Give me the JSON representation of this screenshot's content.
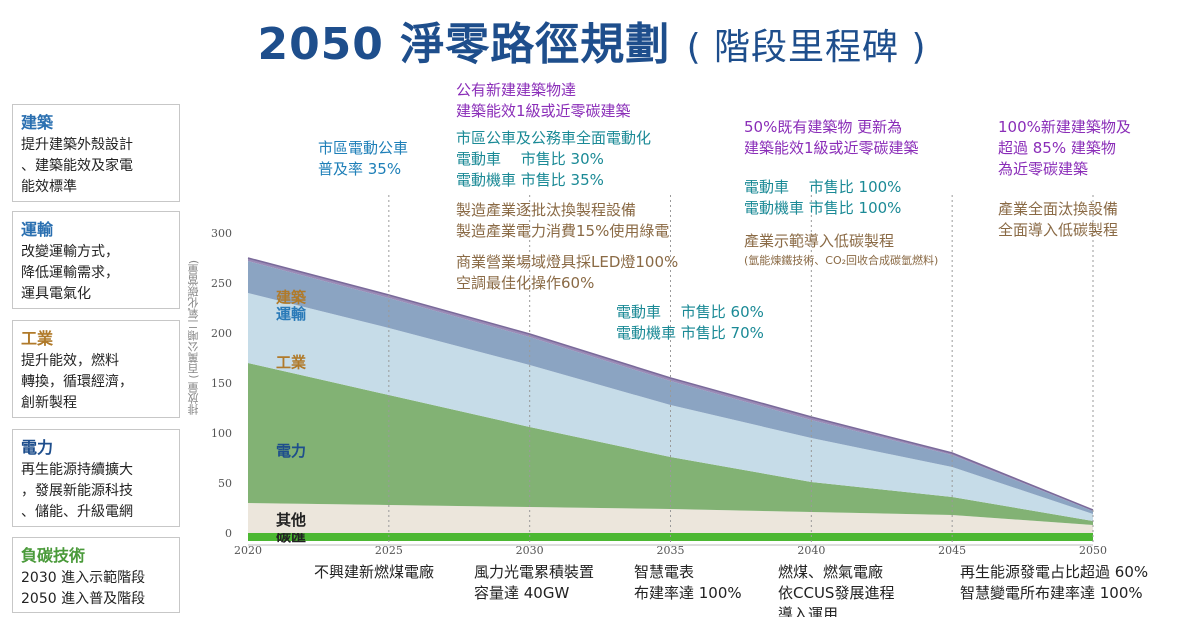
{
  "title": {
    "main": "2050 淨零路徑規劃",
    "sub": "( 階段里程碑 )"
  },
  "sectors": [
    {
      "key": "building",
      "name": "建築",
      "desc": "提升建築外殼設計\n、建築能效及家電\n能效標準",
      "color": "#2a6fb0"
    },
    {
      "key": "transport",
      "name": "運輸",
      "desc": "改變運輸方式，\n降低運輸需求，\n運具電氣化",
      "color": "#2a6fb0"
    },
    {
      "key": "industry",
      "name": "工業",
      "desc": "提升能效，燃料\n轉換，循環經濟，\n創新製程",
      "color": "#b07a2a"
    },
    {
      "key": "power",
      "name": "電力",
      "desc": "再生能源持續擴大\n，發展新能源科技\n、儲能、升級電網",
      "color": "#1e4e8c"
    },
    {
      "key": "negative",
      "name": "負碳技術",
      "desc": "2030 進入示範階段\n2050 進入普及階段",
      "color": "#4a9a3a"
    }
  ],
  "annotations": {
    "bus_2025": "市區電動公車\n普及率 35%",
    "building_2030": "公有新建建築物達\n建築能效1級或近零碳建築",
    "transport_2030": "市區公車及公務車全面電動化\n電動車　 市售比 30%\n電動機車 市售比 35%",
    "industry_2030": "製造產業逐批汰換製程設備\n製造產業電力消費15%使用綠電",
    "commercial_2030": "商業營業場域燈具採LED燈100%\n空調最佳化操作60%",
    "transport_2035": "電動車　 市售比 60%\n電動機車 市售比 70%",
    "building_2040": "50%既有建築物 更新為\n建築能效1級或近零碳建築",
    "transport_2040": "電動車　 市售比 100%\n電動機車 市售比 100%",
    "industry_2040": "產業示範導入低碳製程",
    "industry_2040_note": "(氫能煉鐵技術、CO₂回收合成碳氫燃料)",
    "building_2050": "100%新建建築物及\n超過 85% 建築物\n為近零碳建築",
    "industry_2050": "產業全面汰換設備\n全面導入低碳製程"
  },
  "bottom_notes": [
    "不興建新燃煤電廠",
    "風力光電累積裝置\n容量達 40GW",
    "智慧電表\n布建率達 100%",
    "燃煤、燃氣電廠\n依CCUS發展進程\n導入運用",
    "再生能源發電占比超過 60%\n智慧變電所布建率達 100%"
  ],
  "chart_data": {
    "type": "area",
    "stacked": true,
    "x": [
      2020,
      2025,
      2030,
      2035,
      2040,
      2045,
      2050
    ],
    "xticks": [
      "2020",
      "2025",
      "2030",
      "2035",
      "2040",
      "2045",
      "2050"
    ],
    "ylim": [
      -10,
      300
    ],
    "yticks": [
      0,
      50,
      100,
      150,
      200,
      250,
      300
    ],
    "ylabel": "排放量 (百萬公噸二氧化碳當量)",
    "series": [
      {
        "name": "碳匯",
        "values": [
          -8,
          -8,
          -8,
          -8,
          -8,
          -8,
          -8
        ],
        "color": "#4cb832"
      },
      {
        "name": "其他",
        "values": [
          30,
          28,
          26,
          24,
          21,
          18,
          8
        ],
        "color": "#ece6dc"
      },
      {
        "name": "電力",
        "values": [
          140,
          110,
          80,
          52,
          30,
          18,
          4
        ],
        "color": "#82b274"
      },
      {
        "name": "工業",
        "values": [
          70,
          67,
          62,
          52,
          44,
          30,
          7
        ],
        "color": "#c6dce8"
      },
      {
        "name": "運輸",
        "values": [
          32,
          30,
          28,
          24,
          18,
          12,
          3
        ],
        "color": "#8ba4c2"
      },
      {
        "name": "建築",
        "values": [
          3,
          3,
          3,
          3,
          3,
          2,
          1
        ],
        "color": "#9a8ab6"
      }
    ],
    "series_label_colors": [
      "#222222",
      "#222222",
      "#1e4e8c",
      "#b07a2a",
      "#2a7ab8",
      "#b07a2a"
    ],
    "grid": false,
    "milestone_lines": [
      2025,
      2030,
      2035,
      2040,
      2045,
      2050
    ]
  }
}
